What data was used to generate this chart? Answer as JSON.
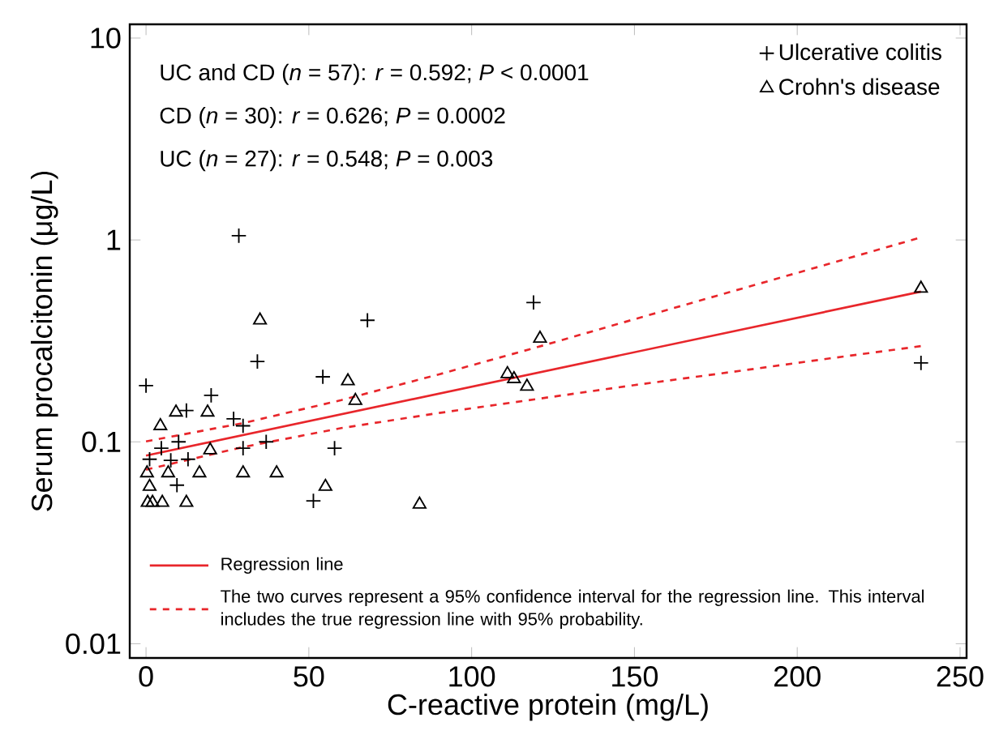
{
  "chart_data": {
    "type": "scatter",
    "xlabel": "C-reactive protein (mg/L)",
    "ylabel": "Serum procalcitonin (μg/L)",
    "log": "y",
    "xlim": [
      -5,
      252
    ],
    "ylim": [
      0.0085,
      11.7
    ],
    "xticks": [
      0,
      50,
      100,
      150,
      200,
      250
    ],
    "yticks": [
      0.01,
      0.1,
      1,
      10
    ],
    "legend": "top right",
    "grid": false,
    "annotations": [
      "UC and CD (*n* = 57): *r* = 0.592; *P* < 0.0001",
      "CD (*n* = 30): *r* = 0.626; *P* = 0.0002",
      "UC (*n* = 27): *r* = 0.548; *P* = 0.003"
    ],
    "series": [
      {
        "name": "Ulcerative colitis",
        "marker": "cross",
        "color": "#000000",
        "x": [
          28.5,
          68,
          34.2,
          0,
          54.3,
          20,
          12.4,
          26.9,
          29.8,
          10,
          4.7,
          36.9,
          29.8,
          57.9,
          12.9,
          7.6,
          1.1,
          9.5,
          51.4,
          119,
          238
        ],
        "values": [
          1.05,
          0.4,
          0.25,
          0.19,
          0.21,
          0.17,
          0.143,
          0.13,
          0.12,
          0.1,
          0.093,
          0.1,
          0.093,
          0.093,
          0.082,
          0.081,
          0.082,
          0.061,
          0.051,
          0.49,
          0.246
        ]
      },
      {
        "name": "Crohn's disease",
        "marker": "triangle",
        "color": "#000000",
        "x": [
          121,
          111,
          113,
          117,
          238,
          84,
          35,
          62,
          64.3,
          9.2,
          18.9,
          4.4,
          19.7,
          0.3,
          6.8,
          16.4,
          29.8,
          40.1,
          55.1,
          1.1,
          0.5,
          2,
          5,
          12.4
        ],
        "values": [
          0.325,
          0.217,
          0.205,
          0.188,
          0.575,
          0.049,
          0.4,
          0.2,
          0.16,
          0.14,
          0.14,
          0.12,
          0.091,
          0.07,
          0.07,
          0.07,
          0.07,
          0.07,
          0.06,
          0.06,
          0.05,
          0.05,
          0.05,
          0.05
        ]
      },
      {
        "name": "Regression line",
        "type": "line",
        "line_style": "solid",
        "color": "#e8262b",
        "x": [
          0,
          238
        ],
        "values": [
          0.0855,
          0.555
        ]
      },
      {
        "name": "The two curves represent a 95% confidence interval for the regression line. This interval includes the true regression line with 95% probability.",
        "type": "line",
        "line_style": "dashed",
        "color": "#e8262b",
        "x": [
          0,
          30,
          60,
          90,
          120,
          150,
          180,
          210,
          238
        ],
        "values": [
          0.1005,
          0.124,
          0.161,
          0.216,
          0.294,
          0.405,
          0.556,
          0.764,
          1.03
        ]
      },
      {
        "type": "line",
        "line_style": "dashed",
        "color": "#e8262b",
        "x": [
          0,
          30,
          60,
          90,
          120,
          150,
          180,
          210,
          238
        ],
        "values": [
          0.0728,
          0.0944,
          0.117,
          0.139,
          0.163,
          0.191,
          0.222,
          0.259,
          0.298
        ]
      }
    ]
  }
}
